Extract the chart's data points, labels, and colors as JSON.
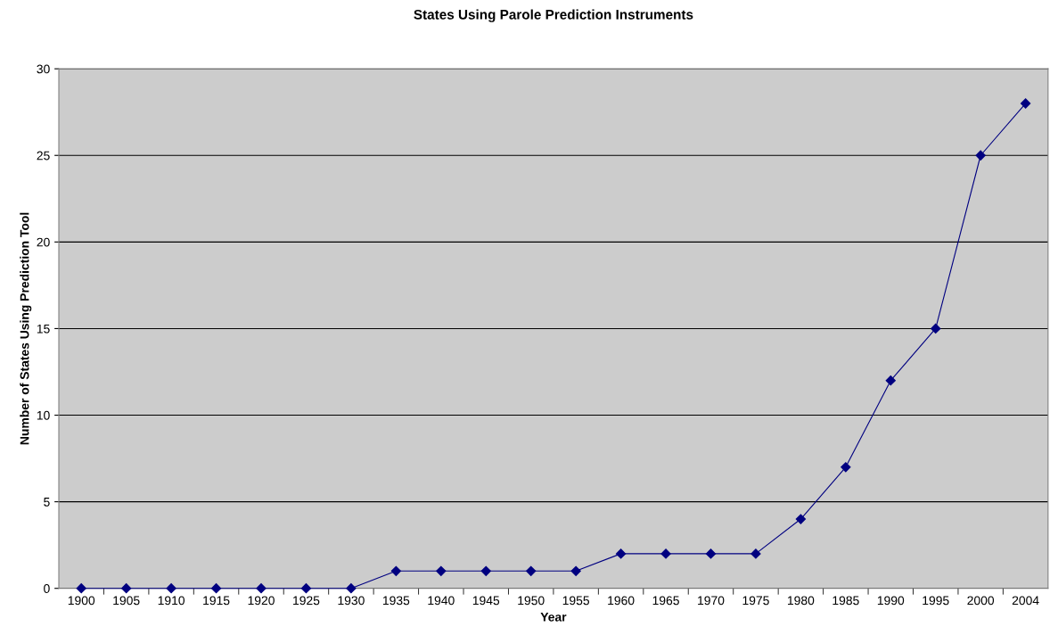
{
  "chart_data": {
    "type": "line",
    "title": "States Using Parole Prediction Instruments",
    "xlabel": "Year",
    "ylabel": "Number of States Using Prediction Tool",
    "categories": [
      "1900",
      "1905",
      "1910",
      "1915",
      "1920",
      "1925",
      "1930",
      "1935",
      "1940",
      "1945",
      "1950",
      "1955",
      "1960",
      "1965",
      "1970",
      "1975",
      "1980",
      "1985",
      "1990",
      "1995",
      "2000",
      "2004"
    ],
    "series": [
      {
        "color": "#000080",
        "values": [
          0,
          0,
          0,
          0,
          0,
          0,
          0,
          1,
          1,
          1,
          1,
          1,
          2,
          2,
          2,
          2,
          4,
          7,
          12,
          15,
          25,
          28
        ]
      }
    ],
    "ylim": [
      0,
      30
    ],
    "yticks": [
      0,
      5,
      10,
      15,
      20,
      25,
      30
    ],
    "grid": "y",
    "marker": "diamond",
    "line_style": "solid"
  }
}
